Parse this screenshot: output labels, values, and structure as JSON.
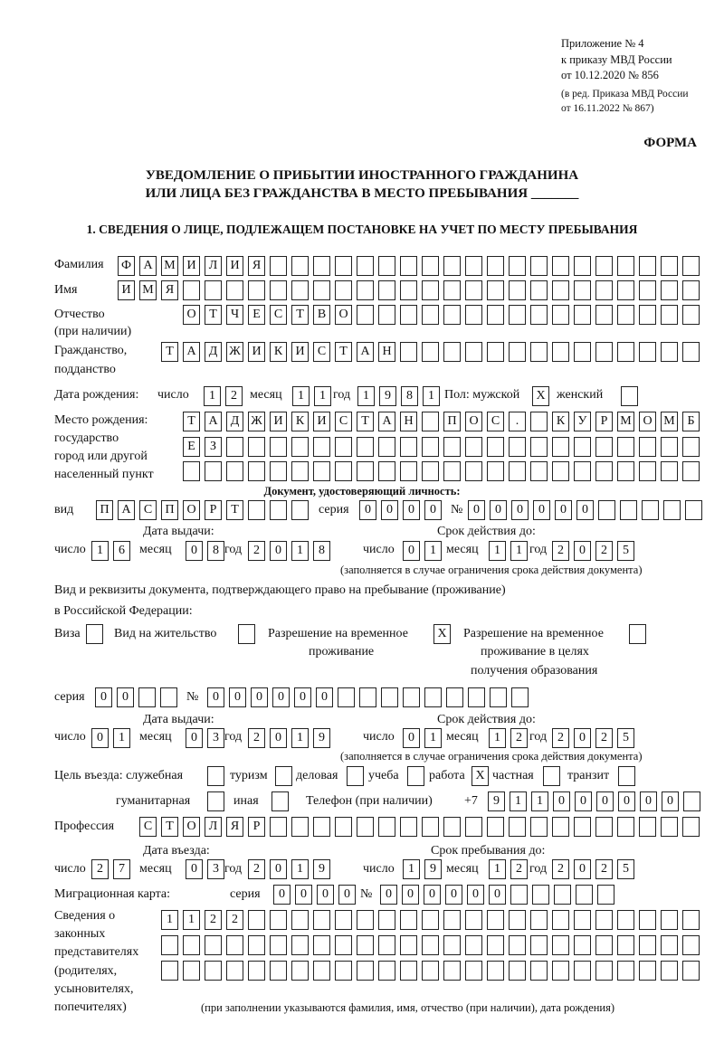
{
  "header": {
    "line1": "Приложение № 4",
    "line2": "к приказу МВД России",
    "line3": "от 10.12.2020 № 856",
    "line4": "(в ред. Приказа МВД России",
    "line5": "от 16.11.2022 № 867)",
    "forma": "ФОРМА",
    "title1": "УВЕДОМЛЕНИЕ О ПРИБЫТИИ ИНОСТРАННОГО ГРАЖДАНИНА",
    "title2": "ИЛИ ЛИЦА БЕЗ ГРАЖДАНСТВА В МЕСТО ПРЕБЫВАНИЯ _______",
    "section1": "1. СВЕДЕНИЯ О ЛИЦЕ, ПОДЛЕЖАЩЕМ ПОСТАНОВКЕ НА УЧЕТ ПО МЕСТУ ПРЕБЫВАНИЯ"
  },
  "labels": {
    "surname": "Фамилия",
    "name": "Имя",
    "patronymic1": "Отчество",
    "patronymic2": "(при наличии)",
    "citizenship1": "Гражданство,",
    "citizenship2": "подданство",
    "dob": "Дата рождения:",
    "day": "число",
    "month": "месяц",
    "year": "год",
    "sex": "Пол: мужской",
    "female": "женский",
    "pob1": "Место рождения:",
    "pob2": "государство",
    "pob3": "город или другой",
    "pob4": "населенный пункт",
    "id_doc": "Документ, удостоверяющий личность:",
    "kind": "вид",
    "series": "серия",
    "number": "№",
    "issue_date": "Дата выдачи:",
    "valid_until": "Срок действия до:",
    "valid_note": "(заполняется в случае ограничения срока действия документа)",
    "right_doc1": "Вид и реквизиты документа, подтверждающего право на пребывание (проживание)",
    "right_doc2": "в Российской Федерации:",
    "visa": "Виза",
    "residence": "Вид на жительство",
    "rvp1": "Разрешение на временное",
    "rvp2": "проживание",
    "rvp_edu1": "Разрешение на временное",
    "rvp_edu2": "проживание в целях",
    "rvp_edu3": "получения образования",
    "purpose": "Цель въезда: служебная",
    "tourism": "туризм",
    "business": "деловая",
    "study": "учеба",
    "work": "работа",
    "private": "частная",
    "transit": "транзит",
    "humanitarian": "гуманитарная",
    "other": "иная",
    "phone": "Телефон (при наличии)",
    "phone_prefix": "+7",
    "profession": "Профессия",
    "entry_date": "Дата въезда:",
    "stay_until": "Срок пребывания до:",
    "migration_card": "Миграционная карта:",
    "reps1": "Сведения о",
    "reps2": "законных",
    "reps3": "представителях",
    "reps4": "(родителях,",
    "reps5": "усыновителях,",
    "reps6": "попечителях)",
    "reps_note": "(при заполнении указываются фамилия, имя, отчество (при наличии), дата рождения)"
  },
  "fields": {
    "surname": "ФАМИЛИЯ",
    "name": "ИМЯ",
    "patronymic": "ОТЧЕСТВО",
    "citizenship": "ТАДЖИКИСТАН",
    "dob_day": "12",
    "dob_month": "11",
    "dob_year": "1981",
    "male": "X",
    "female": "",
    "pob_row1": "ТАДЖИКИСТАН ПОС. КУРМОМБ",
    "pob_row2": "ЕЗ",
    "pob_row3": "",
    "id_kind": "ПАСПОРТ",
    "id_series": "0000",
    "id_number": "000000",
    "id_issue_day": "16",
    "id_issue_month": "08",
    "id_issue_year": "2018",
    "id_valid_day": "01",
    "id_valid_month": "11",
    "id_valid_year": "2025",
    "visa": "",
    "residence": "",
    "rvp": "X",
    "rvp_edu": "",
    "rd_series": "00",
    "rd_number": "000000",
    "rd_issue_day": "01",
    "rd_issue_month": "03",
    "rd_issue_year": "2019",
    "rd_valid_day": "01",
    "rd_valid_month": "12",
    "rd_valid_year": "2025",
    "p_official": "",
    "p_tourism": "",
    "p_business": "",
    "p_study": "",
    "p_work": "X",
    "p_private": "",
    "p_transit": "",
    "p_humanitarian": "",
    "p_other": "",
    "phone": "911000000",
    "profession": "СТОЛЯР",
    "entry_day": "27",
    "entry_month": "03",
    "entry_year": "2019",
    "stay_day": "19",
    "stay_month": "12",
    "stay_year": "2025",
    "mc_series": "0000",
    "mc_number": "000000",
    "reps_row1": "1122",
    "reps_row2": "",
    "reps_row3": ""
  }
}
